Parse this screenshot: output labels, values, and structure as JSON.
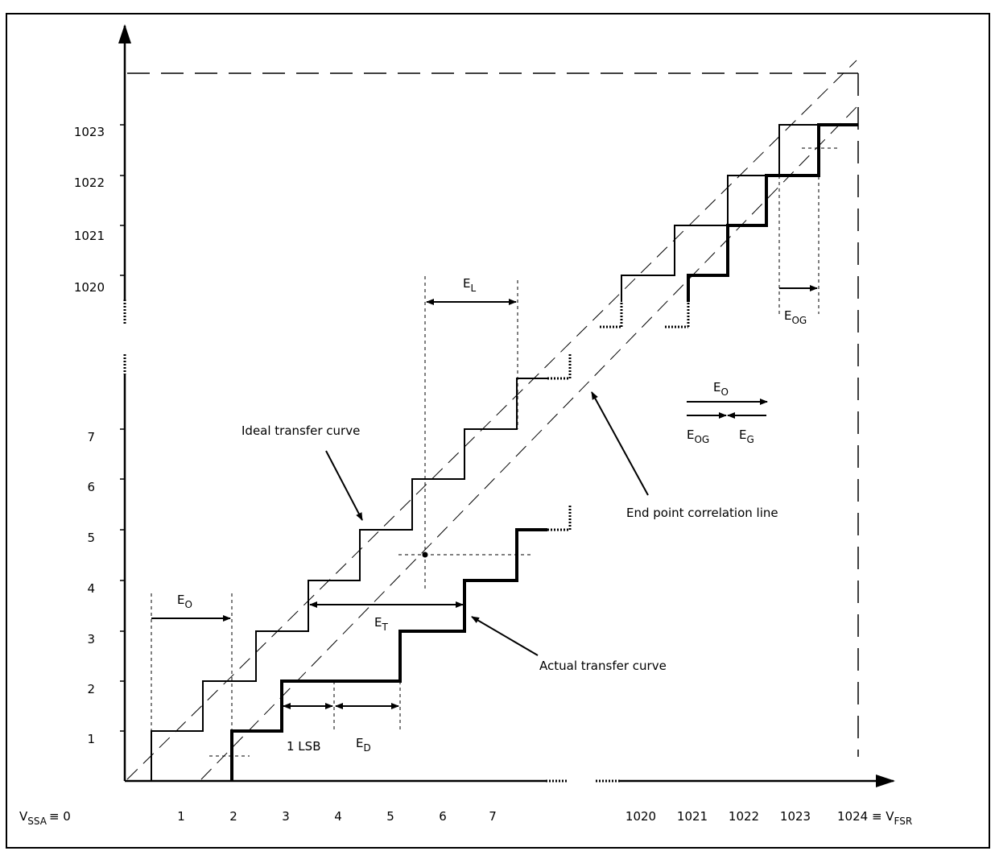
{
  "y_ticks_lower": [
    "1",
    "2",
    "3",
    "4",
    "5",
    "6",
    "7"
  ],
  "y_ticks_upper": [
    "1020",
    "1021",
    "1022",
    "1023"
  ],
  "x_ticks_lower": [
    "1",
    "2",
    "3",
    "4",
    "5",
    "6",
    "7"
  ],
  "x_origin": {
    "main": "V",
    "sub": "SSA",
    "tail": "≡ 0"
  },
  "x_ticks_upper": [
    "1020",
    "1021",
    "1022",
    "1023"
  ],
  "x_end": {
    "main": "1024 ≡ V",
    "sub": "FSR"
  },
  "labels": {
    "ideal": "Ideal transfer curve",
    "actual": "Actual transfer curve",
    "endpoint": "End point correlation line",
    "one_lsb": "1 LSB"
  },
  "errors": {
    "E": "E",
    "O": "O",
    "L": "L",
    "T": "T",
    "D": "D",
    "OG": "OG",
    "G": "G"
  }
}
